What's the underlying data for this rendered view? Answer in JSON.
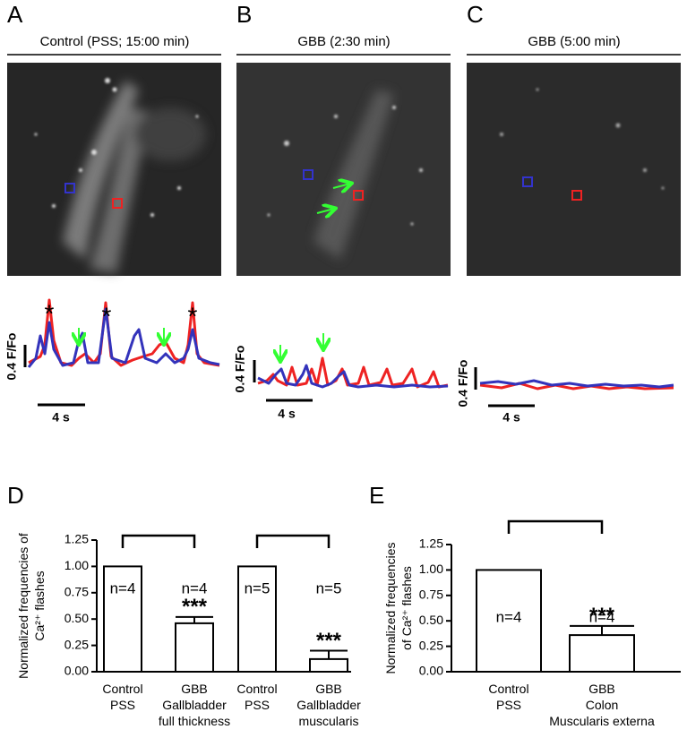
{
  "panels": [
    {
      "letter": "A",
      "title": "Control (PSS;  15:00 min)",
      "y_scale": "0.4 F/Fo",
      "x_scale": "4 s",
      "marker": "*"
    },
    {
      "letter": "B",
      "title": "GBB (2:30 min)",
      "y_scale": "0.4 F/Fo",
      "x_scale": "4 s"
    },
    {
      "letter": "C",
      "title": "GBB (5:00 min)",
      "y_scale": "0.4 F/Fo",
      "x_scale": "4 s"
    }
  ],
  "chart_data": [
    {
      "type": "bar",
      "letter": "D",
      "ylabel": [
        "Normalized frequencies of",
        "Ca²⁺ flashes"
      ],
      "categories": [
        [
          "Control",
          "PSS"
        ],
        [
          "GBB",
          "Gallbladder",
          "full thickness"
        ],
        [
          "Control",
          "PSS"
        ],
        [
          "GBB",
          "Gallbladder",
          "muscularis"
        ]
      ],
      "values": [
        1.0,
        0.46,
        1.0,
        0.12
      ],
      "errors": [
        null,
        0.06,
        null,
        0.08
      ],
      "n_labels": [
        "n=4",
        "n=4",
        "n=5",
        "n=5"
      ],
      "sig_labels": [
        null,
        "***",
        null,
        "***"
      ],
      "color": "#ffffff",
      "ylim": [
        0,
        1.25
      ],
      "yticks": [
        {
          "value": 0,
          "label": "0.00"
        },
        {
          "value": 0.25,
          "label": "0.25"
        },
        {
          "value": 0.5,
          "label": "0.50"
        },
        {
          "value": 0.75,
          "label": "0.75"
        },
        {
          "value": 1,
          "label": "1.00"
        },
        {
          "value": 1.25,
          "label": "1.25"
        }
      ]
    },
    {
      "type": "bar",
      "letter": "E",
      "ylabel": [
        "Normalized frequencies",
        "of Ca²⁺ flashes"
      ],
      "categories": [
        [
          "Control",
          "PSS"
        ],
        [
          "GBB",
          "Colon",
          "Muscularis externa"
        ]
      ],
      "values": [
        1.0,
        0.36
      ],
      "errors": [
        null,
        0.09
      ],
      "n_labels": [
        "n=4",
        "n=4"
      ],
      "sig_labels": [
        null,
        "***"
      ],
      "color": "#ffffff",
      "ylim": [
        0,
        1.25
      ],
      "yticks": [
        {
          "value": 0,
          "label": "0.00"
        },
        {
          "value": 0.25,
          "label": "0.25"
        },
        {
          "value": 0.5,
          "label": "0.50"
        },
        {
          "value": 0.75,
          "label": "0.75"
        },
        {
          "value": 1,
          "label": "1.00"
        },
        {
          "value": 1.25,
          "label": "1.25"
        }
      ]
    }
  ]
}
